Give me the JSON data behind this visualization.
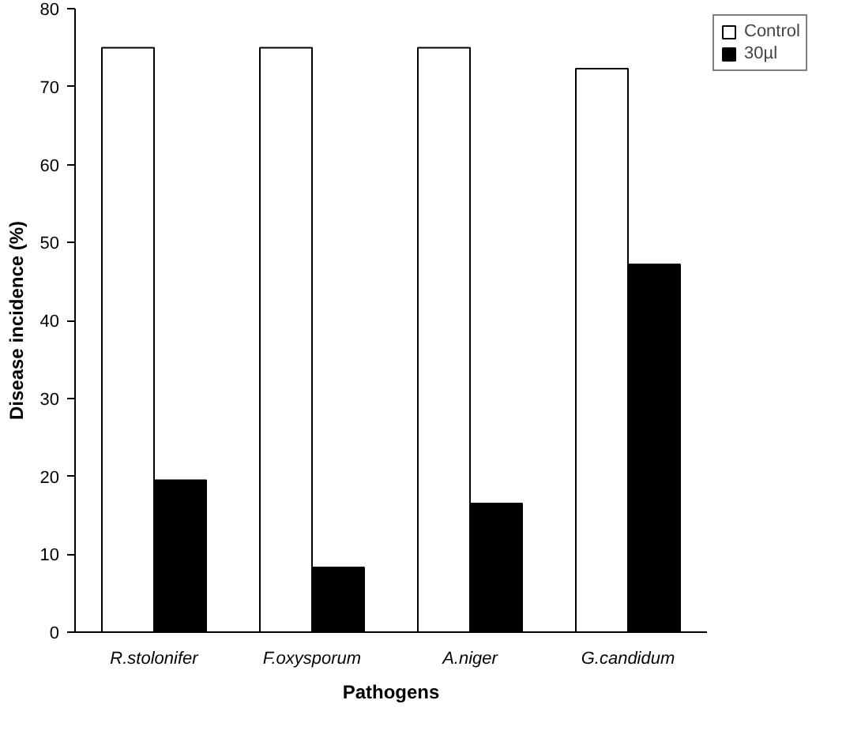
{
  "chart_data": {
    "type": "bar",
    "xlabel": "Pathogens",
    "ylabel": "Disease incidence (%)",
    "categories": [
      "R.stolonifer",
      "F.oxysporum",
      "A.niger",
      "G.candidum"
    ],
    "series": [
      {
        "name": "Control",
        "color": "#ffffff",
        "values": [
          75,
          75,
          75,
          72.3
        ]
      },
      {
        "name": "30µl",
        "color": "#000000",
        "values": [
          19.5,
          8.3,
          16.5,
          47.2
        ]
      }
    ],
    "ylim": [
      0,
      80
    ],
    "yticks": [
      0,
      10,
      20,
      30,
      40,
      50,
      60,
      70,
      80
    ],
    "legend": "top right"
  }
}
